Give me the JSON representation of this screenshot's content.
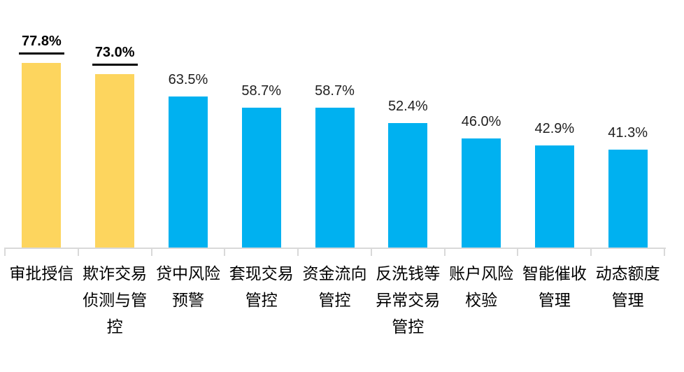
{
  "chart_data": {
    "type": "bar",
    "title": "",
    "xlabel": "",
    "ylabel": "",
    "grid": false,
    "legend": false,
    "ylim": [
      0,
      80
    ],
    "categories": [
      "审批授信",
      "欺诈交易侦测与管控",
      "贷中风险预警",
      "套现交易管控",
      "资金流向管控",
      "反洗钱等异常交易管控",
      "账户风险校验",
      "智能催收管理",
      "动态额度管理"
    ],
    "categories_wrapped": [
      "审批授信",
      "欺诈交易\n侦测与管\n控",
      "贷中风险\n预警",
      "套现交易\n管控",
      "资金流向\n管控",
      "反洗钱等\n异常交易\n管控",
      "账户风险\n校验",
      "智能催收\n管理",
      "动态额度\n管理"
    ],
    "values": [
      77.8,
      73.0,
      63.5,
      58.7,
      58.7,
      52.4,
      46.0,
      42.9,
      41.3
    ],
    "value_labels": [
      "77.8%",
      "73.0%",
      "63.5%",
      "58.7%",
      "58.7%",
      "52.4%",
      "46.0%",
      "42.9%",
      "41.3%"
    ],
    "highlighted": [
      true,
      true,
      false,
      false,
      false,
      false,
      false,
      false,
      false
    ],
    "colors": {
      "highlight_bar": "#FDD55E",
      "normal_bar": "#00B1F0",
      "axis": "#D9D9D9",
      "value_label": "#1F1F1F",
      "value_label_highlight": "#000000",
      "category_label": "#000000"
    }
  }
}
